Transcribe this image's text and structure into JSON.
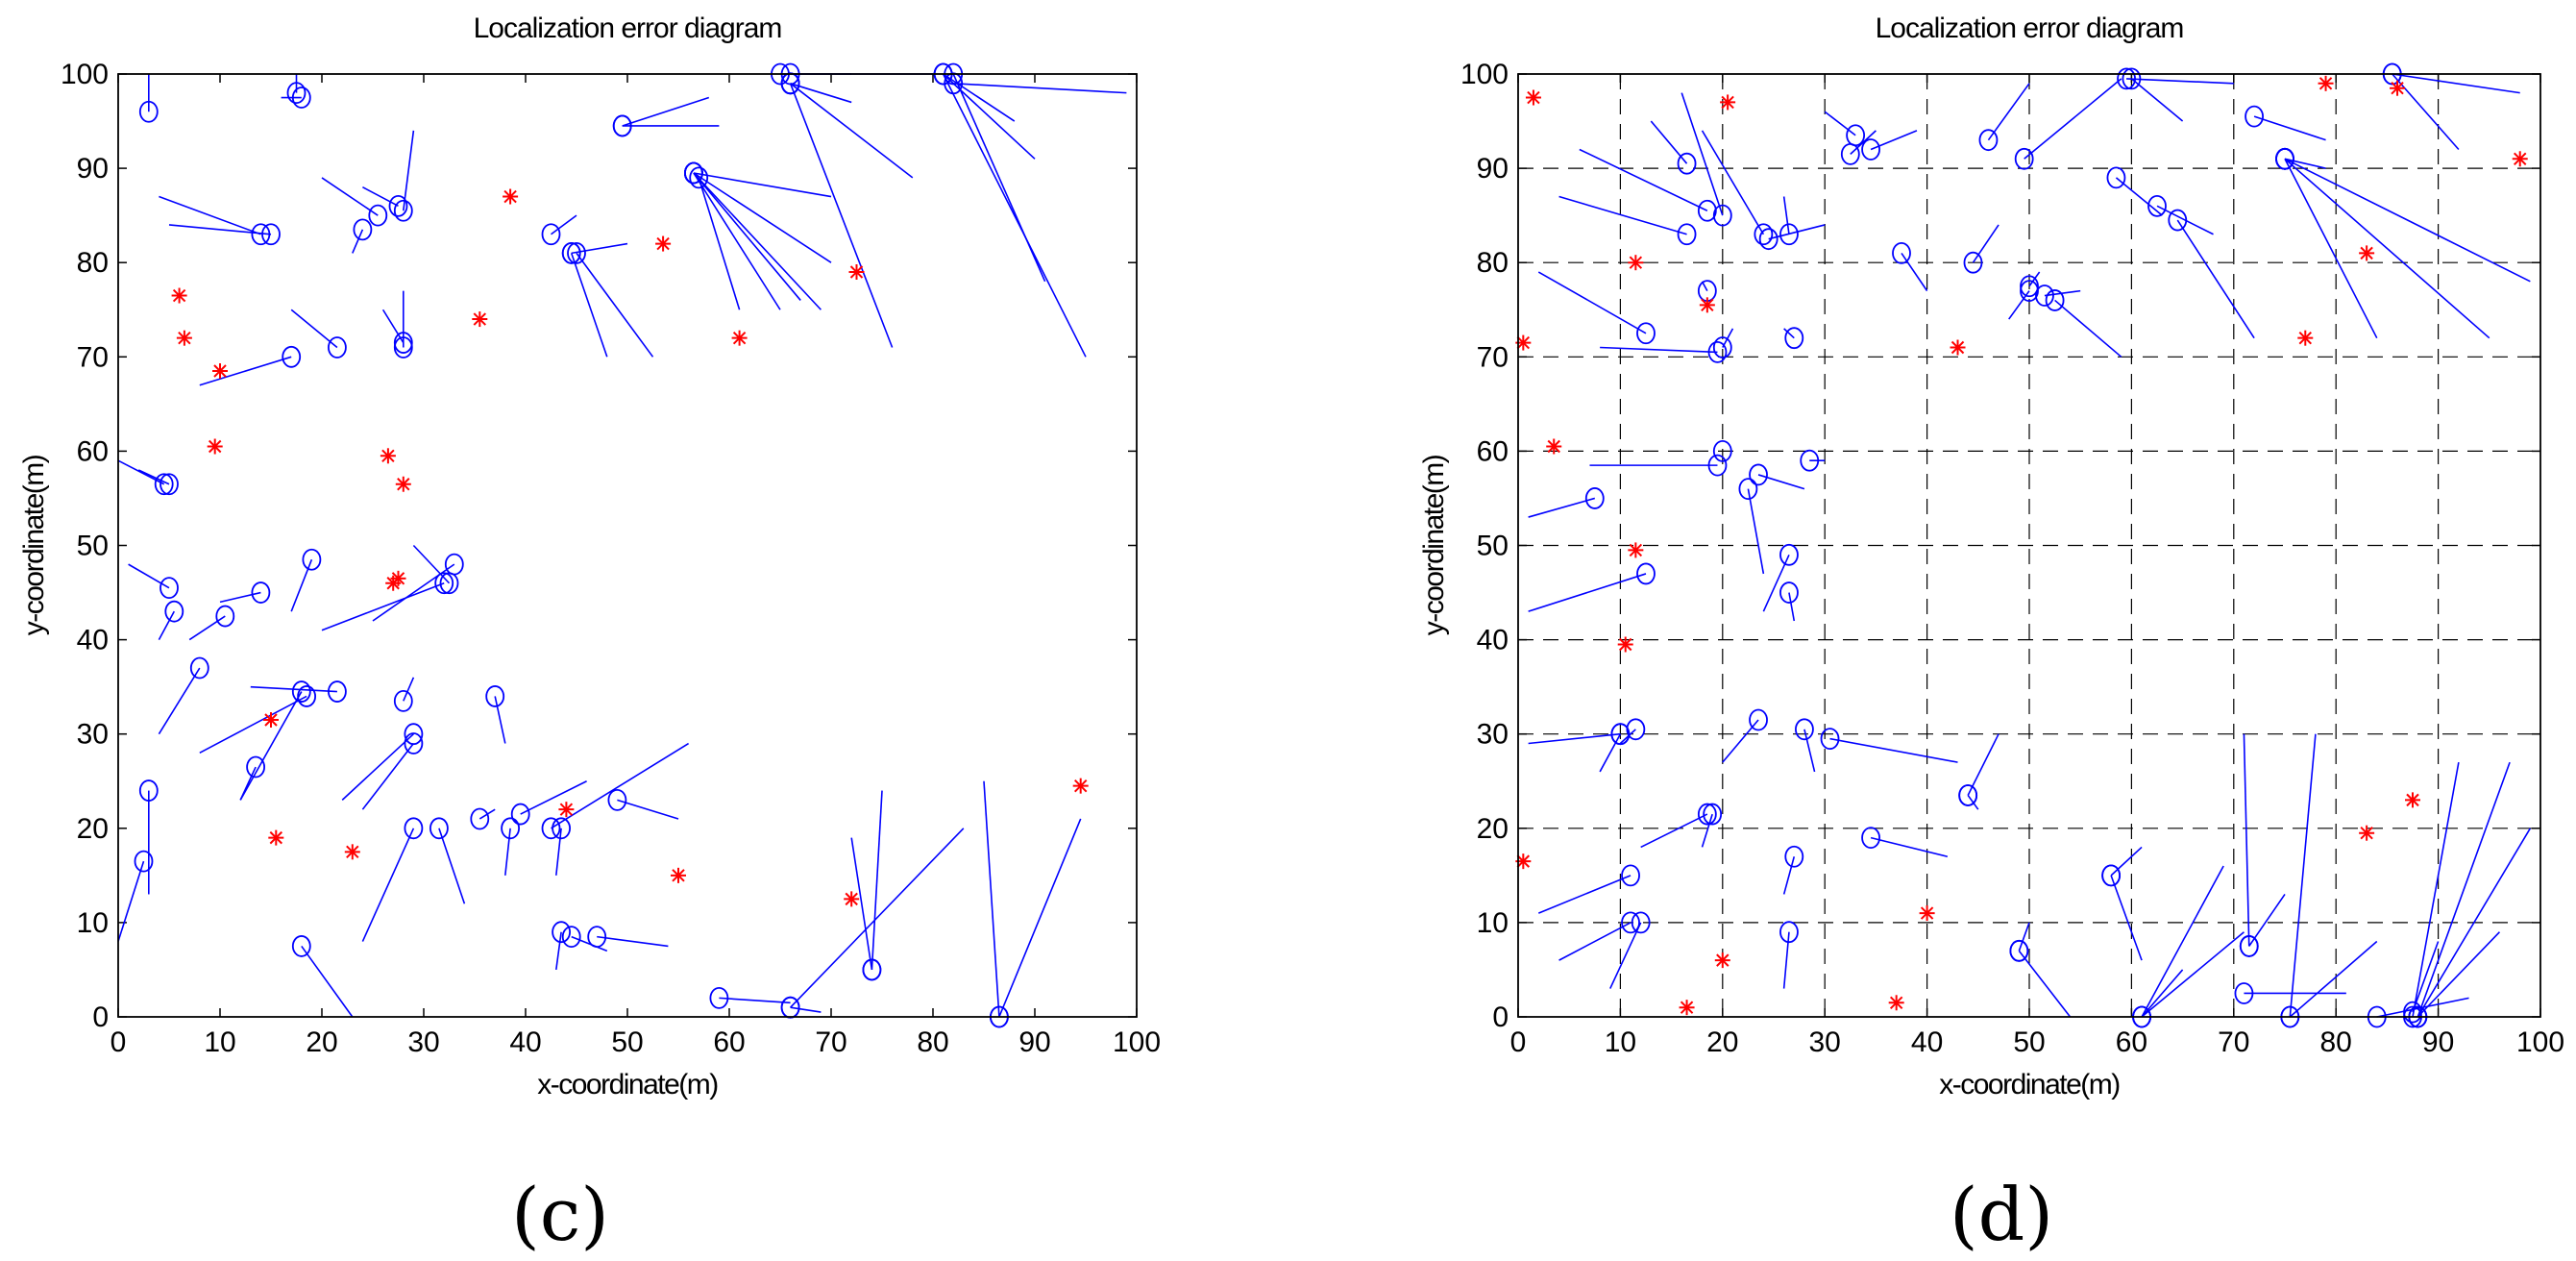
{
  "chart_data": [
    {
      "type": "scatter",
      "panel_label": "(c)",
      "title": "Localization error diagram",
      "xlabel": "x-coordinate(m)",
      "ylabel": "y-coordinate(m)",
      "xlim": [
        0,
        100
      ],
      "ylim": [
        0,
        100
      ],
      "xticks": [
        "0",
        "10",
        "20",
        "30",
        "40",
        "50",
        "60",
        "70",
        "80",
        "90",
        "100"
      ],
      "yticks": [
        "0",
        "10",
        "20",
        "30",
        "40",
        "50",
        "60",
        "70",
        "80",
        "90",
        "100"
      ],
      "grid": false,
      "marker_color": "#0000ff",
      "anchor_color": "#ff0000",
      "anchors": [
        [
          6,
          76.5
        ],
        [
          6.5,
          72
        ],
        [
          10,
          68.5
        ],
        [
          9.5,
          60.5
        ],
        [
          38.5,
          87
        ],
        [
          35.5,
          74
        ],
        [
          26.5,
          59.5
        ],
        [
          28,
          56.5
        ],
        [
          27,
          46
        ],
        [
          27.5,
          46.5
        ],
        [
          15,
          31.5
        ],
        [
          15.5,
          19
        ],
        [
          23,
          17.5
        ],
        [
          44,
          22
        ],
        [
          55,
          15
        ],
        [
          53.5,
          82
        ],
        [
          61,
          72
        ],
        [
          72.5,
          79
        ],
        [
          72,
          12.5
        ],
        [
          94.5,
          24.5
        ]
      ],
      "nodes": [
        [
          3,
          96,
          3,
          100
        ],
        [
          18,
          97.5,
          16,
          97.5
        ],
        [
          17.5,
          98,
          17.5,
          100
        ],
        [
          14,
          83,
          4,
          87
        ],
        [
          15,
          83,
          5,
          84
        ],
        [
          25.5,
          85,
          20,
          89
        ],
        [
          28,
          85.5,
          29,
          94
        ],
        [
          27.5,
          86,
          24,
          88
        ],
        [
          24,
          83.5,
          23,
          81
        ],
        [
          21.5,
          71,
          17,
          75
        ],
        [
          17,
          70,
          8,
          67
        ],
        [
          28,
          71,
          28,
          77
        ],
        [
          28,
          71.5,
          26,
          75
        ],
        [
          4.5,
          56.5,
          0,
          59
        ],
        [
          5,
          56.5,
          2,
          58
        ],
        [
          5,
          45.5,
          1,
          48
        ],
        [
          5.5,
          43,
          4,
          40
        ],
        [
          10.5,
          42.5,
          7,
          40
        ],
        [
          8,
          37,
          4,
          30
        ],
        [
          14,
          45,
          10,
          44
        ],
        [
          19,
          48.5,
          17,
          43
        ],
        [
          32,
          46,
          20,
          41
        ],
        [
          32.5,
          46,
          29,
          50
        ],
        [
          33,
          48,
          25,
          42
        ],
        [
          18.5,
          34,
          8,
          28
        ],
        [
          21.5,
          34.5,
          13,
          35
        ],
        [
          18,
          34.5,
          12,
          23
        ],
        [
          13.5,
          26.5,
          12,
          23
        ],
        [
          28,
          33.5,
          29,
          36
        ],
        [
          29,
          30,
          22,
          23
        ],
        [
          29,
          29,
          24,
          22
        ],
        [
          37,
          34,
          38,
          29
        ],
        [
          2.5,
          16.5,
          0,
          8
        ],
        [
          3,
          24,
          3,
          13
        ],
        [
          29,
          20,
          24,
          8
        ],
        [
          31.5,
          20,
          34,
          12
        ],
        [
          35.5,
          21,
          37,
          22
        ],
        [
          38.5,
          20,
          38,
          15
        ],
        [
          39.5,
          21.5,
          46,
          25
        ],
        [
          42.5,
          20,
          56,
          29
        ],
        [
          43.5,
          20,
          43,
          15
        ],
        [
          49,
          23,
          55,
          21
        ],
        [
          43.5,
          9,
          43,
          5
        ],
        [
          44.5,
          8.5,
          48,
          7
        ],
        [
          47,
          8.5,
          54,
          7.5
        ],
        [
          18,
          7.5,
          23,
          0
        ],
        [
          42.5,
          83,
          45,
          85
        ],
        [
          44.5,
          81,
          50,
          82
        ],
        [
          44.5,
          81,
          48,
          70
        ],
        [
          45,
          81,
          52.5,
          70
        ],
        [
          49.5,
          94.5,
          59,
          94.5
        ],
        [
          49.5,
          94.5,
          58,
          97.5
        ],
        [
          56.5,
          89.5,
          70,
          87
        ],
        [
          56.5,
          89.5,
          65,
          75
        ],
        [
          56.5,
          89.5,
          67,
          76
        ],
        [
          56.5,
          89.5,
          69,
          75
        ],
        [
          56.5,
          89.5,
          70,
          80
        ],
        [
          57,
          89,
          61,
          75
        ],
        [
          65,
          100,
          80,
          100
        ],
        [
          66,
          99,
          72,
          97
        ],
        [
          66,
          99,
          78,
          89
        ],
        [
          66,
          99,
          76,
          71
        ],
        [
          66,
          100,
          72,
          100
        ],
        [
          81,
          100,
          90,
          91
        ],
        [
          81,
          100,
          88,
          95
        ],
        [
          82,
          99,
          99,
          98
        ],
        [
          82,
          100,
          91,
          78
        ],
        [
          81,
          100,
          95,
          70
        ],
        [
          59,
          2,
          66,
          1.5
        ],
        [
          66,
          1,
          69,
          0.5
        ],
        [
          66,
          1,
          83,
          20
        ],
        [
          74,
          5,
          75,
          24
        ],
        [
          74,
          5,
          72,
          19
        ],
        [
          86.5,
          0,
          94.5,
          21
        ],
        [
          86.5,
          0,
          85,
          25
        ]
      ]
    },
    {
      "type": "scatter",
      "panel_label": "(d)",
      "title": "Localization error diagram",
      "xlabel": "x-coordinate(m)",
      "ylabel": "y-coordinate(m)",
      "xlim": [
        0,
        100
      ],
      "ylim": [
        0,
        100
      ],
      "xticks": [
        "0",
        "10",
        "20",
        "30",
        "40",
        "50",
        "60",
        "70",
        "80",
        "90",
        "100"
      ],
      "yticks": [
        "0",
        "10",
        "20",
        "30",
        "40",
        "50",
        "60",
        "70",
        "80",
        "90",
        "100"
      ],
      "grid": true,
      "marker_color": "#0000ff",
      "anchor_color": "#ff0000",
      "anchors": [
        [
          1.5,
          97.5
        ],
        [
          20.5,
          97
        ],
        [
          0.5,
          71.5
        ],
        [
          11.5,
          80
        ],
        [
          18.5,
          75.5
        ],
        [
          3.5,
          60.5
        ],
        [
          11.5,
          49.5
        ],
        [
          10.5,
          39.5
        ],
        [
          43,
          71
        ],
        [
          79,
          99
        ],
        [
          98,
          91
        ],
        [
          86,
          98.5
        ],
        [
          83,
          81
        ],
        [
          77,
          72
        ],
        [
          0.5,
          16.5
        ],
        [
          20,
          6
        ],
        [
          16.5,
          1
        ],
        [
          37,
          1.5
        ],
        [
          40,
          11
        ],
        [
          83,
          19.5
        ],
        [
          87.5,
          23
        ]
      ],
      "nodes": [
        [
          16.5,
          90.5,
          13,
          95
        ],
        [
          18.5,
          85.5,
          6,
          92
        ],
        [
          16.5,
          83,
          4,
          87
        ],
        [
          20,
          85,
          16,
          98
        ],
        [
          24,
          83,
          18,
          94
        ],
        [
          24.5,
          82.5,
          30,
          84
        ],
        [
          26.5,
          83,
          26,
          87
        ],
        [
          18.5,
          77,
          18,
          78
        ],
        [
          12.5,
          72.5,
          2,
          79
        ],
        [
          19.5,
          70.5,
          8,
          71
        ],
        [
          20,
          71,
          21,
          73
        ],
        [
          27,
          72,
          26,
          73
        ],
        [
          33,
          93.5,
          30,
          96
        ],
        [
          32.5,
          91.5,
          35,
          94
        ],
        [
          34.5,
          92,
          39,
          94
        ],
        [
          37.5,
          81,
          40,
          77
        ],
        [
          44.5,
          80,
          47,
          84
        ],
        [
          46,
          93,
          50,
          99
        ],
        [
          49.5,
          91,
          59,
          99.5
        ],
        [
          59.5,
          99.5,
          70,
          99
        ],
        [
          60,
          99.5,
          65,
          95
        ],
        [
          50,
          77.5,
          51,
          79
        ],
        [
          50,
          77,
          48,
          74
        ],
        [
          51.5,
          76.5,
          55,
          77
        ],
        [
          52.5,
          76,
          59,
          70
        ],
        [
          58.5,
          89,
          63,
          85
        ],
        [
          62.5,
          86,
          68,
          83
        ],
        [
          64.5,
          84.5,
          72,
          72
        ],
        [
          72,
          95.5,
          79,
          93
        ],
        [
          75,
          91,
          79,
          90
        ],
        [
          75,
          91,
          84,
          72
        ],
        [
          75,
          91,
          95,
          72
        ],
        [
          75,
          91,
          99,
          78
        ],
        [
          85.5,
          100,
          98,
          98
        ],
        [
          85.5,
          100,
          92,
          92
        ],
        [
          7.5,
          55,
          1,
          53
        ],
        [
          19.5,
          58.5,
          7,
          58.5
        ],
        [
          20,
          60,
          20,
          60
        ],
        [
          22.5,
          56,
          24,
          47
        ],
        [
          23.5,
          57.5,
          28,
          56
        ],
        [
          28.5,
          59,
          30,
          59
        ],
        [
          12.5,
          47,
          1,
          43
        ],
        [
          26.5,
          49,
          24,
          43
        ],
        [
          26.5,
          45,
          27,
          42
        ],
        [
          11.5,
          30.5,
          10,
          29
        ],
        [
          10,
          30,
          1,
          29
        ],
        [
          10,
          30,
          8,
          26
        ],
        [
          23.5,
          31.5,
          20,
          27
        ],
        [
          28,
          30.5,
          29,
          26
        ],
        [
          30.5,
          29.5,
          43,
          27
        ],
        [
          18.5,
          21.5,
          12,
          18
        ],
        [
          19,
          21.5,
          18,
          18
        ],
        [
          34.5,
          19,
          42,
          17
        ],
        [
          27,
          17,
          26,
          13
        ],
        [
          44,
          23.5,
          47,
          30
        ],
        [
          44,
          23.5,
          45,
          22
        ],
        [
          58,
          15,
          61,
          6
        ],
        [
          58,
          15,
          61,
          18
        ],
        [
          11,
          15,
          2,
          11
        ],
        [
          11,
          10,
          4,
          6
        ],
        [
          12,
          10,
          9,
          3
        ],
        [
          26.5,
          9,
          26,
          3
        ],
        [
          49,
          7,
          54,
          0
        ],
        [
          49,
          7,
          50,
          10
        ],
        [
          61,
          0,
          65,
          5
        ],
        [
          61,
          0,
          69,
          16
        ],
        [
          61,
          0,
          71,
          9
        ],
        [
          71.5,
          7.5,
          71,
          30
        ],
        [
          71.5,
          7.5,
          75,
          13
        ],
        [
          71,
          2.5,
          81,
          2.5
        ],
        [
          75.5,
          0,
          78,
          30
        ],
        [
          75.5,
          0,
          84,
          8
        ],
        [
          84,
          0,
          93,
          2
        ],
        [
          87.5,
          0,
          92,
          27
        ],
        [
          88,
          0,
          97,
          27
        ],
        [
          88,
          0,
          99,
          20
        ],
        [
          88,
          0,
          96,
          9
        ],
        [
          87.5,
          0.5,
          90,
          8
        ]
      ]
    }
  ]
}
